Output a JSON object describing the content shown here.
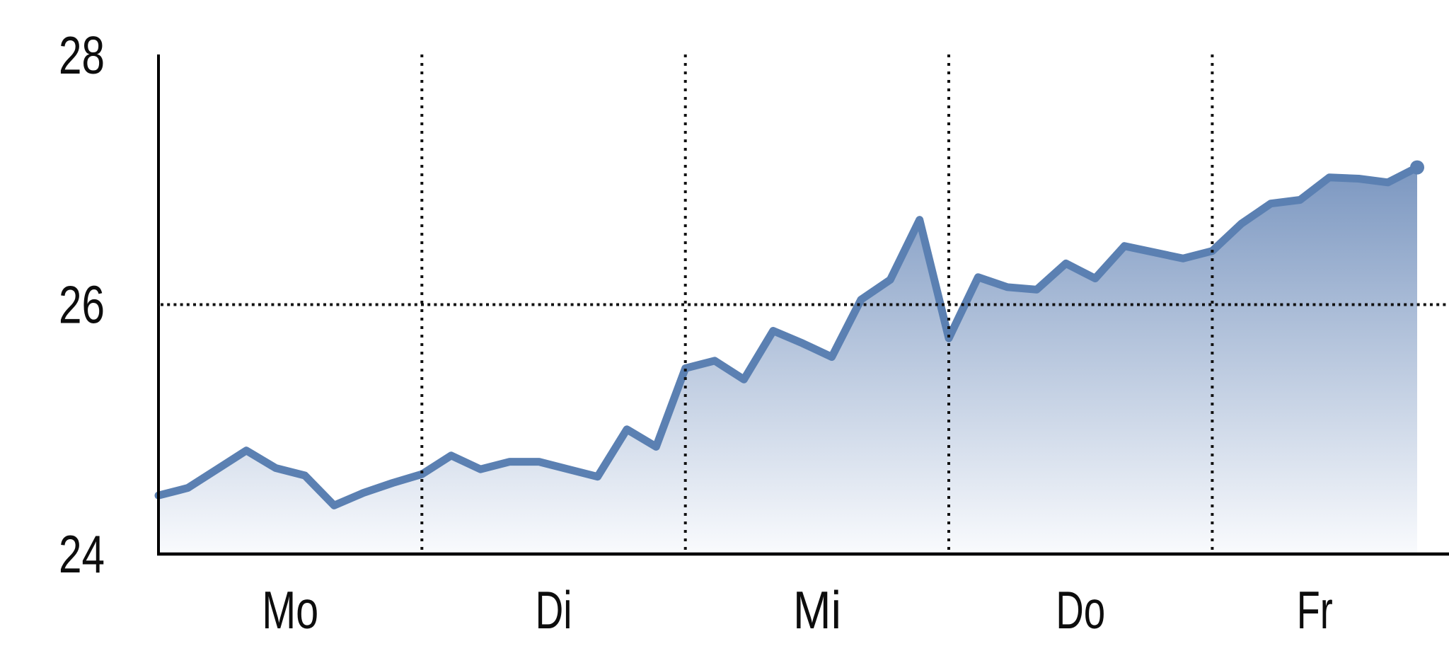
{
  "chart_data": {
    "type": "area",
    "title": "",
    "x_axis": {
      "day_labels": [
        "Mo",
        "Di",
        "Mi",
        "Do",
        "Fr"
      ],
      "points_per_day": 9,
      "vertical_dotted_gridlines_between_days": true
    },
    "y_axis": {
      "ticks": [
        28,
        26,
        24
      ],
      "range": [
        24,
        28
      ],
      "horizontal_dotted_line_at": 26
    },
    "series": [
      {
        "name": "",
        "values": [
          24.47,
          24.53,
          24.68,
          24.83,
          24.69,
          24.63,
          24.39,
          24.49,
          24.57,
          24.64,
          24.79,
          24.68,
          24.74,
          24.74,
          24.68,
          24.62,
          25.0,
          24.86,
          25.49,
          25.55,
          25.4,
          25.79,
          25.69,
          25.58,
          26.04,
          26.2,
          26.68,
          25.73,
          26.22,
          26.14,
          26.12,
          26.33,
          26.21,
          26.47,
          26.42,
          26.37,
          26.43,
          26.65,
          26.81,
          26.84,
          27.02,
          27.01,
          26.98,
          27.1
        ]
      }
    ],
    "last_value": 27.1,
    "colors": {
      "line": "#5b80b2",
      "area_top": "#7a96c0",
      "area_bottom": "#fbfcfe",
      "axis": "#000000",
      "gridline_dots": "#111111",
      "labels": "#0d0d0d",
      "background": "#ffffff"
    },
    "legend": null
  }
}
